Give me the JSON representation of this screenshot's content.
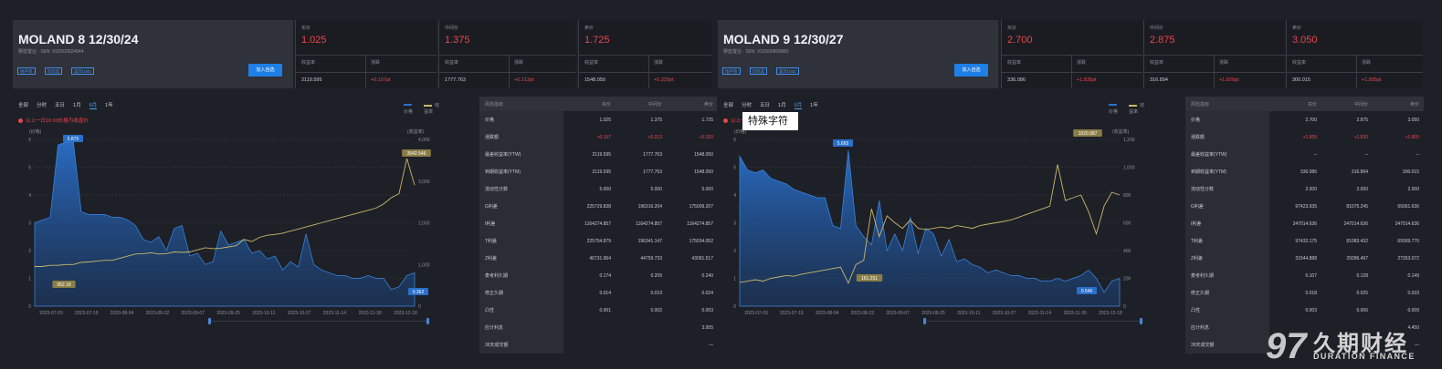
{
  "left": {
    "title": "MOLAND 8 12/30/24",
    "subtitle": "穆蓝置业 · ISIN: XS2502824944",
    "tags": [
      "地产债",
      "可优选",
      "美元USD"
    ],
    "add_button": "加入自选",
    "quotes": [
      {
        "label": "买价",
        "value": "1.025",
        "yield_label": "收益率",
        "yield": "2119.595",
        "change_label": "涨跌",
        "change": "+0.107pt"
      },
      {
        "label": "中间价",
        "value": "1.375",
        "yield_label": "收益率",
        "yield": "1777.763",
        "change_label": "涨跌",
        "change": "+0.213pt"
      },
      {
        "label": "卖价",
        "value": "1.725",
        "yield_label": "收益率",
        "yield": "1548.050",
        "change_label": "涨跌",
        "change": "+0.320pt"
      }
    ],
    "tabs": [
      "全部",
      "分时",
      "五日",
      "1月",
      "6月",
      "1年"
    ],
    "active_tab": "6月",
    "legend": [
      "价格",
      "收益率"
    ],
    "note": "以上一日16:00价格为收盘价",
    "chart_labels": {
      "left_axis": "(价格)",
      "right_axis": "(收益率)",
      "peak_price": "5.875",
      "peak_yield": "3542.546",
      "min_yield": "952.18",
      "last_price": "0.362"
    },
    "table": {
      "headers": [
        "风险指标",
        "买价",
        "中间价",
        "卖价"
      ],
      "rows": [
        [
          "价格",
          "1.025",
          "1.375",
          "1.725"
        ],
        [
          "涨跌额",
          "+0.107",
          "+0.213",
          "+0.320"
        ],
        [
          "最差收益率(YTW)",
          "2119.595",
          "1777.763",
          "1548.050"
        ],
        [
          "到期收益率(YTM)",
          "2119.595",
          "1777.763",
          "1548.050"
        ],
        [
          "流动性分数",
          "5.000",
          "5.000",
          "5.000"
        ],
        [
          "G利差",
          "225729.838",
          "196316.204",
          "175009.207"
        ],
        [
          "I利差",
          "1164274.857",
          "1164274.857",
          "1164274.857"
        ],
        [
          "T利差",
          "225754.879",
          "196341.147",
          "175034.052"
        ],
        [
          "Z利差",
          "46731.964",
          "44759.733",
          "43081.517"
        ],
        [
          "麦考利久期",
          "0.174",
          "0.209",
          "0.240"
        ],
        [
          "修正久期",
          "0.014",
          "0.019",
          "0.024"
        ],
        [
          "凸性",
          "0.001",
          "0.002",
          "0.003"
        ],
        [
          "应计利息",
          "",
          "",
          "3.955"
        ],
        [
          "30天成交额",
          "",
          "",
          "—"
        ]
      ]
    }
  },
  "right": {
    "title": "MOLAND 9 12/30/27",
    "subtitle": "穆蓝置业 · ISIN: XS2500809880",
    "tags": [
      "地产债",
      "可优选",
      "美元USD"
    ],
    "add_button": "加入自选",
    "quotes": [
      {
        "label": "买价",
        "value": "2.700",
        "yield_label": "收益率",
        "yield": "336.086",
        "change_label": "涨跌",
        "change": "+1.835pt"
      },
      {
        "label": "中间价",
        "value": "2.875",
        "yield_label": "收益率",
        "yield": "316.894",
        "change_label": "涨跌",
        "change": "+1.820pt"
      },
      {
        "label": "卖价",
        "value": "3.050",
        "yield_label": "收益率",
        "yield": "300.015",
        "change_label": "涨跌",
        "change": "+1.805pt"
      }
    ],
    "tabs": [
      "全部",
      "分时",
      "五日",
      "1月",
      "6月",
      "1年"
    ],
    "active_tab": "6月",
    "legend": [
      "价格",
      "收益率"
    ],
    "note": "以上一日16:00价格为收盘价",
    "chart_labels": {
      "left_axis": "(价格)",
      "right_axis": "(收益率)",
      "peak_price": "5.665",
      "peak_yield": "1020.087",
      "min_yield": "161.251",
      "last_price": "0.546"
    },
    "table": {
      "headers": [
        "风险指标",
        "买价",
        "中间价",
        "卖价"
      ],
      "rows": [
        [
          "价格",
          "2.700",
          "2.875",
          "3.050"
        ],
        [
          "涨跌额",
          "+1.835",
          "+1.820",
          "+1.805"
        ],
        [
          "最差收益率(YTW)",
          "--",
          "--",
          "--"
        ],
        [
          "到期收益率(YTM)",
          "336.086",
          "316.894",
          "300.015"
        ],
        [
          "流动性分数",
          "2.000",
          "2.000",
          "2.000"
        ],
        [
          "G利差",
          "97423.935",
          "81075.245",
          "69361.636"
        ],
        [
          "I利差",
          "247014.636",
          "247014.636",
          "247014.636"
        ],
        [
          "T利差",
          "97432.175",
          "81083.432",
          "69369.770"
        ],
        [
          "Z利差",
          "31544.888",
          "29286.497",
          "27353.072"
        ],
        [
          "麦考利久期",
          "0.107",
          "0.128",
          "0.149"
        ],
        [
          "修正久期",
          "0.018",
          "0.025",
          "0.033"
        ],
        [
          "凸性",
          "0.003",
          "0.006",
          "0.009"
        ],
        [
          "应计利息",
          "",
          "",
          "4.450"
        ],
        [
          "30天成交额",
          "",
          "",
          "—"
        ]
      ]
    }
  },
  "tooltip_text": "特殊字符",
  "brand": {
    "number": "97",
    "cn": "久期财经",
    "en": "DURATION FINANCE"
  },
  "colors": {
    "price": "#2a6fc9",
    "yield": "#c8b86a",
    "up": "#e8474b",
    "accent": "#1e7fe6"
  },
  "chart_data": [
    {
      "type": "line",
      "x": [
        "2023-07-03",
        "2023-07-19",
        "2023-08-04",
        "2023-08-22",
        "2023-09-07",
        "2023-09-25",
        "2023-10-11",
        "2023-10-27",
        "2023-11-14",
        "2023-11-30",
        "2023-12-18"
      ],
      "y_left_ticks": [
        "0",
        "1",
        "2",
        "3",
        "4",
        "5",
        "6"
      ],
      "y_right_ticks": [
        "0",
        "1,000",
        "2,000",
        "3,000",
        "4,000"
      ],
      "series": [
        {
          "name": "价格",
          "axis": "left",
          "values": [
            3.0,
            3.2,
            3.3,
            2.5,
            2.8,
            2.2,
            1.5,
            1.4,
            1.1,
            1.0,
            1.1
          ]
        },
        {
          "name": "收益率",
          "axis": "right",
          "values": [
            952,
            1050,
            1100,
            1250,
            1300,
            1400,
            1700,
            1850,
            2050,
            2300,
            2950
          ]
        }
      ]
    },
    {
      "type": "line",
      "x": [
        "2023-07-03",
        "2023-07-19",
        "2023-08-04",
        "2023-08-22",
        "2023-09-07",
        "2023-09-25",
        "2023-10-11",
        "2023-10-27",
        "2023-11-14",
        "2023-11-30",
        "2023-12-18"
      ],
      "y_left_ticks": [
        "0",
        "1",
        "2",
        "3",
        "4",
        "5",
        "6"
      ],
      "y_right_ticks": [
        "0",
        "200",
        "400",
        "600",
        "800",
        "1,000",
        "1,200"
      ],
      "series": [
        {
          "name": "价格",
          "axis": "left",
          "values": [
            4.9,
            4.4,
            3.9,
            2.9,
            2.5,
            2.6,
            1.5,
            1.2,
            1.1,
            0.9,
            1.0
          ]
        },
        {
          "name": "收益率",
          "axis": "right",
          "values": [
            170,
            200,
            230,
            330,
            600,
            560,
            570,
            560,
            580,
            700,
            800
          ]
        }
      ]
    }
  ]
}
